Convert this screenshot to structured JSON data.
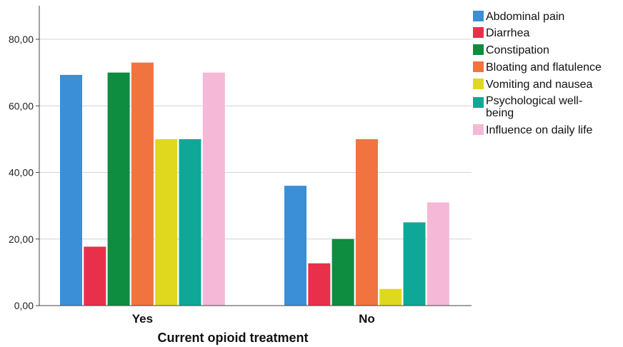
{
  "chart_data": {
    "type": "bar",
    "title": "",
    "xlabel": "Current opioid treatment",
    "ylabel": "",
    "categories": [
      "Yes",
      "No"
    ],
    "ylim": [
      0,
      80
    ],
    "yticks": [
      "0,00",
      "20,00",
      "40,00",
      "60,00",
      "80,00"
    ],
    "ytick_values": [
      0,
      20,
      40,
      60,
      80
    ],
    "grid": true,
    "legend_position": "top-right",
    "series": [
      {
        "name": "Abdominal pain",
        "color": "#3a8fd6",
        "values": [
          69.3,
          36.0
        ]
      },
      {
        "name": "Diarrhea",
        "color": "#e8304a",
        "values": [
          17.7,
          12.7
        ]
      },
      {
        "name": "Constipation",
        "color": "#0e8c3f",
        "values": [
          70.0,
          20.0
        ]
      },
      {
        "name": "Bloating and flatulence",
        "color": "#f07340",
        "values": [
          73.0,
          50.0
        ]
      },
      {
        "name": "Vomiting and nausea",
        "color": "#e0d81e",
        "values": [
          50.0,
          5.0
        ]
      },
      {
        "name": "Psychological well-being",
        "color": "#0fa898",
        "values": [
          50.0,
          25.0
        ]
      },
      {
        "name": "Influence on daily life",
        "color": "#f5b8d6",
        "values": [
          70.0,
          31.0
        ]
      }
    ]
  }
}
